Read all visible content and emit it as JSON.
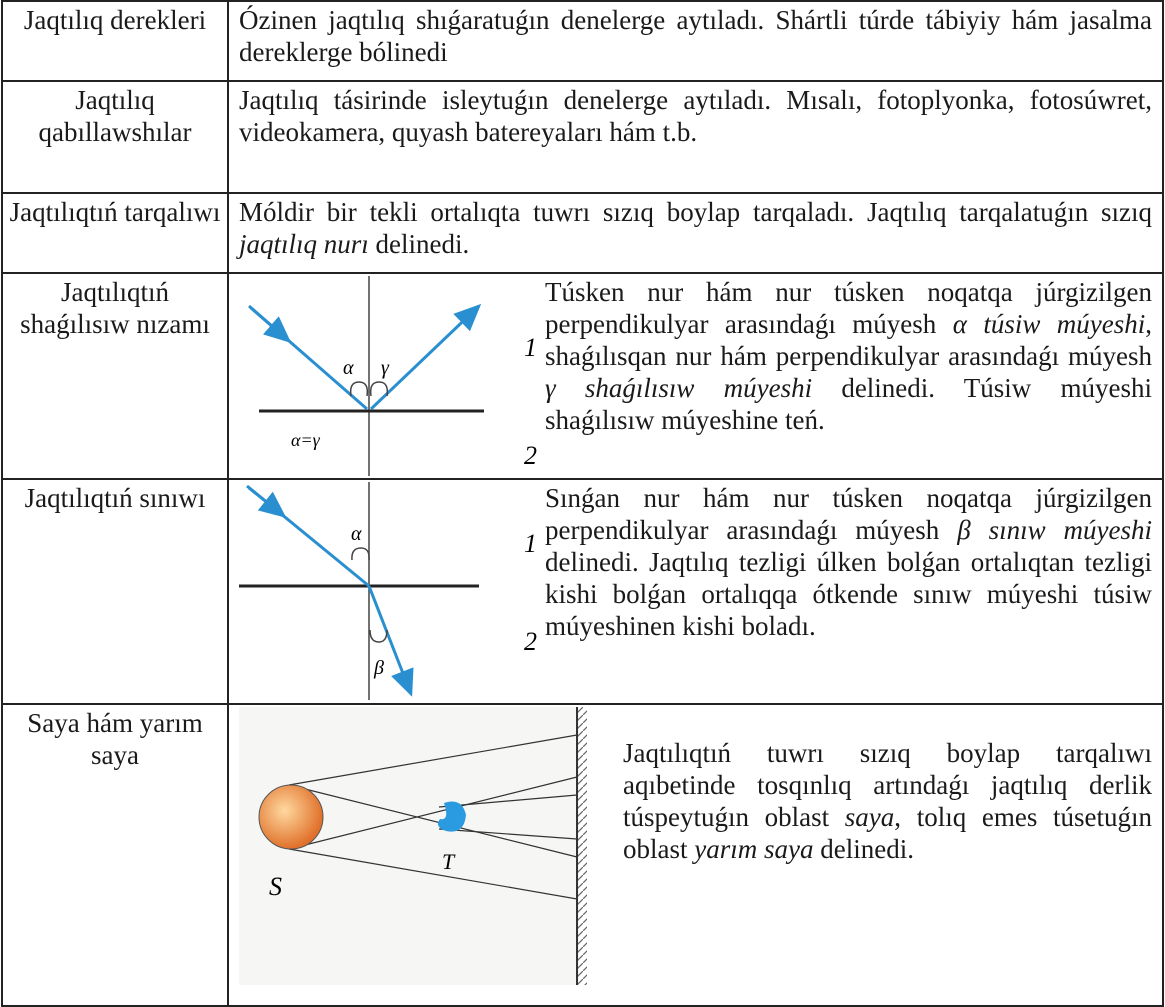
{
  "table": {
    "rows": [
      {
        "term": "Jaqtılıq derekleri",
        "description": [
          {
            "text": "Ózinen jaqtılıq shıǵaratuǵın denelerge aytıladı. Shártli túrde tábiyiy hám jasalma dereklerge bólinedi"
          }
        ]
      },
      {
        "term": "Jaqtılıq qabıllawshılar",
        "description": [
          {
            "text": "Jaqtılıq tásirinde isleytuǵın denelerge aytıladı. Mısalı, fotoplyonka, fotosúwret, videokamera, quyash batereyaları hám t.b."
          }
        ]
      },
      {
        "term": "Jaqtılıqtıń tarqalıwı",
        "description": [
          {
            "text": "Móldir bir tekli ortalıqta tuwrı sızıq boylap tarqaladı. Jaqtılıq tarqalatuǵın sızıq "
          },
          {
            "text": "jaqtılıq nurı",
            "italic": true
          },
          {
            "text": " delinedi."
          }
        ]
      },
      {
        "term": "Jaqtılıqtıń shaǵılısıw nızamı",
        "figure_labels": [
          "α",
          "γ",
          "α=γ",
          "1",
          "2"
        ],
        "description": [
          {
            "text": "Túsken nur hám nur túsken noqatqa júrgizilgen perpendikulyar arasındaǵı múyesh "
          },
          {
            "text": "α túsiw múyeshi",
            "italic": true
          },
          {
            "text": ", shaǵılısqan nur hám perpendikulyar arasındaǵı múyesh "
          },
          {
            "text": "γ shaǵılısıw múyeshi",
            "italic": true
          },
          {
            "text": " delinedi. Túsiw múyeshi shaǵılısıw múyeshine teń."
          }
        ]
      },
      {
        "term": "Jaqtılıqtıń sınıwı",
        "figure_labels": [
          "α",
          "β",
          "1",
          "2"
        ],
        "description": [
          {
            "text": "Sınǵan nur hám nur túsken noqatqa júrgizilgen perpendikulyar arasındaǵı múyesh "
          },
          {
            "text": "β sınıw múyeshi",
            "italic": true
          },
          {
            "text": " delinedi. Jaqtılıq tezligi úlken bolǵan ortalıqtan tezligi kishi bolǵan ortalıqqa ótkende sınıw múyeshi túsiw múyeshinen kishi boladı."
          }
        ]
      },
      {
        "term": "Saya hám yarım saya",
        "figure_labels": [
          "S",
          "T"
        ],
        "description": [
          {
            "text": "Jaqtılıqtıń tuwrı sızıq boylap tarqalıwı aqıbetinde tosqınlıq artındaǵı jaqtılıq derlik túspeytuǵın oblast "
          },
          {
            "text": "saya",
            "italic": true
          },
          {
            "text": ", tolıq emes túsetuǵın oblast "
          },
          {
            "text": "yarım saya",
            "italic": true
          },
          {
            "text": " delinedi."
          }
        ]
      }
    ]
  }
}
